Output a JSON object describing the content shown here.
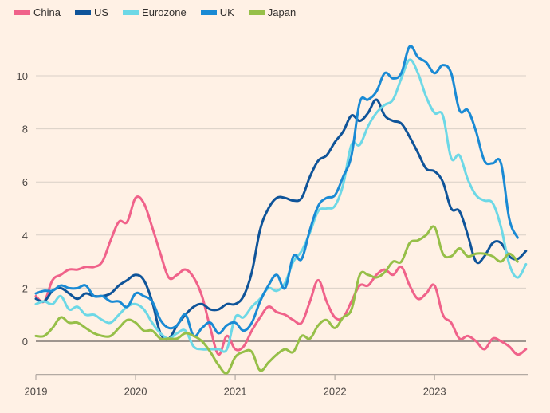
{
  "chart_data": {
    "type": "line",
    "title": "",
    "xlabel": "",
    "ylabel": "",
    "x_start": "2019-01",
    "x_frequency": "monthly",
    "x_ticks": [
      "2019",
      "2020",
      "2021",
      "2022",
      "2023"
    ],
    "y_ticks": [
      "0",
      "2",
      "4",
      "6",
      "8",
      "10"
    ],
    "ylim": [
      -1.2,
      11.3
    ],
    "grid": true,
    "legend_position": "top-left",
    "series": [
      {
        "name": "China",
        "color": "#f0628a",
        "values": [
          1.7,
          1.5,
          2.3,
          2.5,
          2.7,
          2.7,
          2.8,
          2.8,
          3.0,
          3.8,
          4.5,
          4.5,
          5.4,
          5.2,
          4.3,
          3.3,
          2.4,
          2.5,
          2.7,
          2.4,
          1.7,
          0.5,
          -0.5,
          0.2,
          -0.3,
          -0.2,
          0.4,
          0.9,
          1.3,
          1.1,
          1.0,
          0.8,
          0.7,
          1.5,
          2.3,
          1.5,
          0.9,
          0.9,
          1.5,
          2.1,
          2.1,
          2.5,
          2.7,
          2.5,
          2.8,
          2.1,
          1.6,
          1.8,
          2.1,
          1.0,
          0.7,
          0.1,
          0.2,
          0.0,
          -0.3,
          0.1,
          0.0,
          -0.2,
          -0.5,
          -0.3
        ]
      },
      {
        "name": "US",
        "color": "#0f5499",
        "values": [
          1.6,
          1.5,
          1.9,
          2.0,
          1.8,
          1.6,
          1.8,
          1.7,
          1.7,
          1.8,
          2.1,
          2.3,
          2.5,
          2.3,
          1.5,
          0.3,
          0.1,
          0.6,
          1.0,
          1.3,
          1.4,
          1.2,
          1.2,
          1.4,
          1.4,
          1.7,
          2.6,
          4.2,
          5.0,
          5.4,
          5.4,
          5.3,
          5.4,
          6.2,
          6.8,
          7.0,
          7.5,
          7.9,
          8.5,
          8.3,
          8.6,
          9.1,
          8.5,
          8.3,
          8.2,
          7.7,
          7.1,
          6.5,
          6.4,
          6.0,
          5.0,
          4.9,
          4.0,
          3.0,
          3.2,
          3.7,
          3.7,
          3.2,
          3.1,
          3.4
        ]
      },
      {
        "name": "Eurozone",
        "color": "#6dd8e6",
        "values": [
          1.4,
          1.5,
          1.4,
          1.7,
          1.2,
          1.3,
          1.0,
          1.0,
          0.8,
          0.7,
          1.0,
          1.3,
          1.4,
          1.2,
          0.7,
          0.3,
          0.1,
          0.3,
          0.4,
          -0.2,
          -0.3,
          -0.3,
          -0.3,
          -0.3,
          0.9,
          0.9,
          1.3,
          1.6,
          2.0,
          1.9,
          2.2,
          3.0,
          3.4,
          4.1,
          4.9,
          5.0,
          5.1,
          5.9,
          7.4,
          7.4,
          8.1,
          8.6,
          8.9,
          9.1,
          9.9,
          10.6,
          10.1,
          9.2,
          8.6,
          8.5,
          6.9,
          7.0,
          6.1,
          5.5,
          5.3,
          5.2,
          4.3,
          2.9,
          2.4,
          2.9
        ]
      },
      {
        "name": "UK",
        "color": "#1a8ad4",
        "values": [
          1.8,
          1.9,
          1.9,
          2.1,
          2.0,
          2.0,
          2.1,
          1.7,
          1.7,
          1.5,
          1.5,
          1.3,
          1.8,
          1.7,
          1.5,
          0.8,
          0.5,
          0.6,
          1.0,
          0.2,
          0.5,
          0.7,
          0.3,
          0.6,
          0.7,
          0.4,
          0.7,
          1.5,
          2.1,
          2.5,
          2.0,
          3.2,
          3.1,
          4.2,
          5.1,
          5.4,
          5.5,
          6.2,
          7.0,
          9.0,
          9.1,
          9.4,
          10.1,
          9.9,
          10.1,
          11.1,
          10.7,
          10.5,
          10.1,
          10.4,
          10.1,
          8.7,
          8.7,
          7.9,
          6.8,
          6.7,
          6.7,
          4.6,
          3.9,
          null
        ]
      },
      {
        "name": "Japan",
        "color": "#96bf48",
        "values": [
          0.2,
          0.2,
          0.5,
          0.9,
          0.7,
          0.7,
          0.5,
          0.3,
          0.2,
          0.2,
          0.5,
          0.8,
          0.7,
          0.4,
          0.4,
          0.1,
          0.1,
          0.1,
          0.3,
          0.2,
          0.0,
          -0.4,
          -0.9,
          -1.2,
          -0.6,
          -0.4,
          -0.4,
          -1.1,
          -0.8,
          -0.5,
          -0.3,
          -0.4,
          0.2,
          0.1,
          0.6,
          0.8,
          0.5,
          0.9,
          1.2,
          2.5,
          2.5,
          2.4,
          2.6,
          3.0,
          3.0,
          3.7,
          3.8,
          4.0,
          4.3,
          3.3,
          3.2,
          3.5,
          3.2,
          3.3,
          3.3,
          3.2,
          3.0,
          3.3,
          3.0,
          null
        ]
      }
    ]
  }
}
